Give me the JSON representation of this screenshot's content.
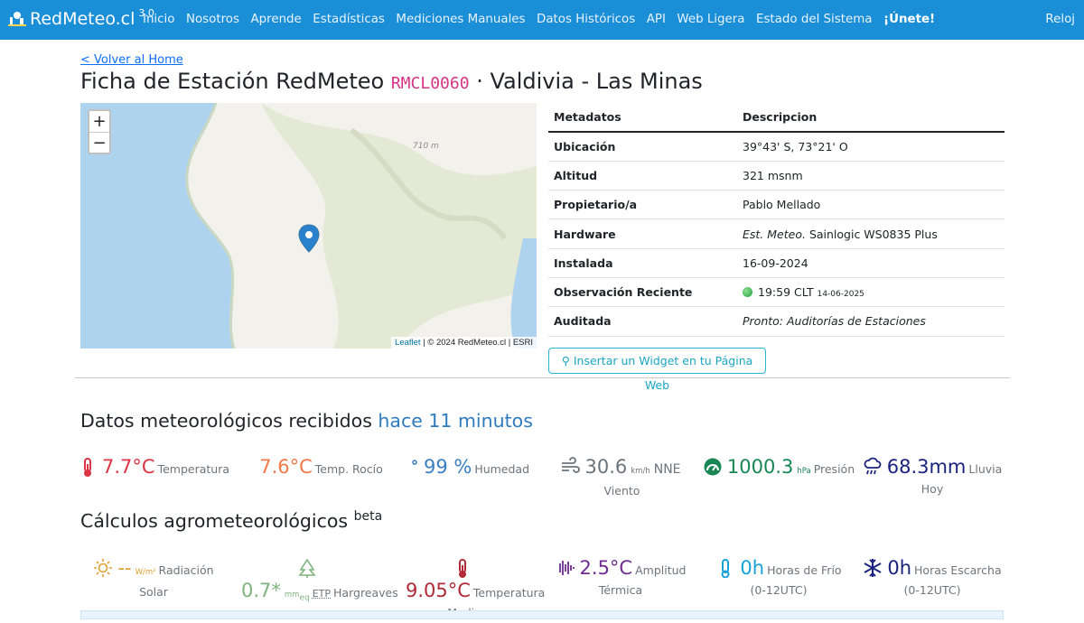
{
  "header": {
    "brand": "RedMeteo.cl",
    "version": "3.0",
    "nav": [
      "Inicio",
      "Nosotros",
      "Aprende",
      "Estadísticas",
      "Mediciones Manuales",
      "Datos Históricos",
      "API",
      "Web Ligera",
      "Estado del Sistema",
      "¡Únete!"
    ],
    "right": "Reloj"
  },
  "back_link": "< Volver al Home",
  "title": {
    "text": "Ficha de Estación RedMeteo",
    "code": "RMCL0060",
    "place": "· Valdivia - Las Minas"
  },
  "map": {
    "zoom_in": "+",
    "zoom_out": "−",
    "elevation_label": "710 m",
    "attribution_link": "Leaflet",
    "attribution": "| © 2024 RedMeteo.cl | ESRI"
  },
  "table": {
    "headers": [
      "Metadatos",
      "Descripcion"
    ],
    "location": {
      "label": "Ubicación",
      "value": "39°43' S, 73°21' O"
    },
    "altitude": {
      "label": "Altitud",
      "value": "321 msnm"
    },
    "owner": {
      "label": "Propietario/a",
      "value": "Pablo Mellado"
    },
    "hardware": {
      "label": "Hardware",
      "type": "Est. Meteo.",
      "value": "Sainlogic WS0835 Plus"
    },
    "installed": {
      "label": "Instalada",
      "value": "16-09-2024"
    },
    "observation": {
      "label": "Observación Reciente",
      "time": "19:59 CLT",
      "date": "14-06-2025"
    },
    "audited": {
      "label": "Auditada",
      "value": "Pronto: Auditorías de Estaciones"
    }
  },
  "widget_button": "Insertar un Widget en tu Página Web",
  "current": {
    "title": "Datos meteorológicos recibidos",
    "age": "hace 11 minutos",
    "metrics": [
      {
        "value": "7.7°C",
        "label": "Temperatura"
      },
      {
        "value": "7.6°C",
        "label": "Temp. Rocío"
      },
      {
        "value": "99 %",
        "label": "Humedad"
      },
      {
        "value": "30.6",
        "unit": "km/h",
        "direction": "NNE",
        "label": "Viento"
      },
      {
        "value": "1000.3",
        "unit": "hPa",
        "label": "Presión"
      },
      {
        "value": "68.3mm",
        "label": "Lluvia Hoy"
      }
    ]
  },
  "agro": {
    "title": "Cálculos agrometeorológicos",
    "badge": "beta",
    "items": [
      {
        "value": "--",
        "unit": "W/m²",
        "label": "Radiación Solar"
      },
      {
        "value": "0.7*",
        "unit": "mm",
        "unit_sub": "eq",
        "method": "ETP",
        "label": "Hargreaves"
      },
      {
        "value": "9.05°C",
        "label": "Temperatura Media"
      },
      {
        "value": "2.5°C",
        "label": "Amplitud Térmica"
      },
      {
        "value": "0h",
        "label": "Horas de Frío (0-12UTC)"
      },
      {
        "value": "0h",
        "label": "Horas Escarcha (0-12UTC)"
      }
    ]
  }
}
